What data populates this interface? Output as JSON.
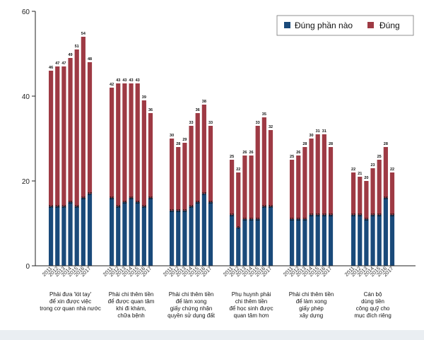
{
  "chart_data": {
    "type": "bar",
    "stacked": true,
    "title": "",
    "xlabel": "",
    "ylabel": "",
    "ylim": [
      0,
      60
    ],
    "yticks": [
      0,
      20,
      40,
      60
    ],
    "grid": false,
    "legend_position": "top-right",
    "colors": {
      "dung_phan_nao": "#1a4a7a",
      "dung": "#9e3a44",
      "plot_bg": "#ffffff",
      "page_bg": "#eaeef2"
    },
    "series_names": [
      "Đúng phần nào",
      "Đúng"
    ],
    "years": [
      "2011",
      "2012",
      "2013",
      "2014",
      "2015",
      "2016",
      "2017"
    ],
    "groups": [
      {
        "label": [
          "Phải đưa 'lót tay'",
          "để xin được việc",
          "trong cơ quan nhà nước"
        ],
        "dung_phan_nao": [
          14,
          14,
          14,
          15,
          14,
          16,
          17
        ],
        "total": [
          46,
          47,
          47,
          49,
          51,
          54,
          48
        ]
      },
      {
        "label": [
          "Phải chi thêm tiền",
          "để được quan tâm",
          "khi đi khám,",
          "chữa bệnh"
        ],
        "dung_phan_nao": [
          16,
          14,
          15,
          16,
          15,
          14,
          16
        ],
        "total": [
          42,
          43,
          43,
          43,
          43,
          39,
          36
        ]
      },
      {
        "label": [
          "Phải chi thêm tiền",
          "để làm xong",
          "giấy chứng nhận",
          "quyền sử dụng đất"
        ],
        "dung_phan_nao": [
          13,
          13,
          13,
          14,
          15,
          17,
          15
        ],
        "total": [
          30,
          28,
          29,
          33,
          36,
          38,
          33
        ]
      },
      {
        "label": [
          "Phụ huynh phải",
          "chi thêm tiền",
          "để học sinh được",
          "quan tâm hơn"
        ],
        "dung_phan_nao": [
          12,
          9,
          11,
          11,
          11,
          14,
          14
        ],
        "total": [
          25,
          22,
          26,
          26,
          33,
          35,
          32
        ]
      },
      {
        "label": [
          "Phải chi thêm tiền",
          "để làm xong",
          "giấy phép",
          "xây dựng"
        ],
        "dung_phan_nao": [
          11,
          11,
          11,
          12,
          12,
          12,
          12
        ],
        "total": [
          25,
          26,
          28,
          30,
          31,
          31,
          28
        ]
      },
      {
        "label": [
          "Cán bộ",
          "dùng tiền",
          "công quỹ cho",
          "mục đích riêng"
        ],
        "dung_phan_nao": [
          12,
          12,
          11,
          12,
          12,
          16,
          12
        ],
        "total": [
          22,
          21,
          20,
          23,
          25,
          28,
          22
        ]
      }
    ]
  }
}
